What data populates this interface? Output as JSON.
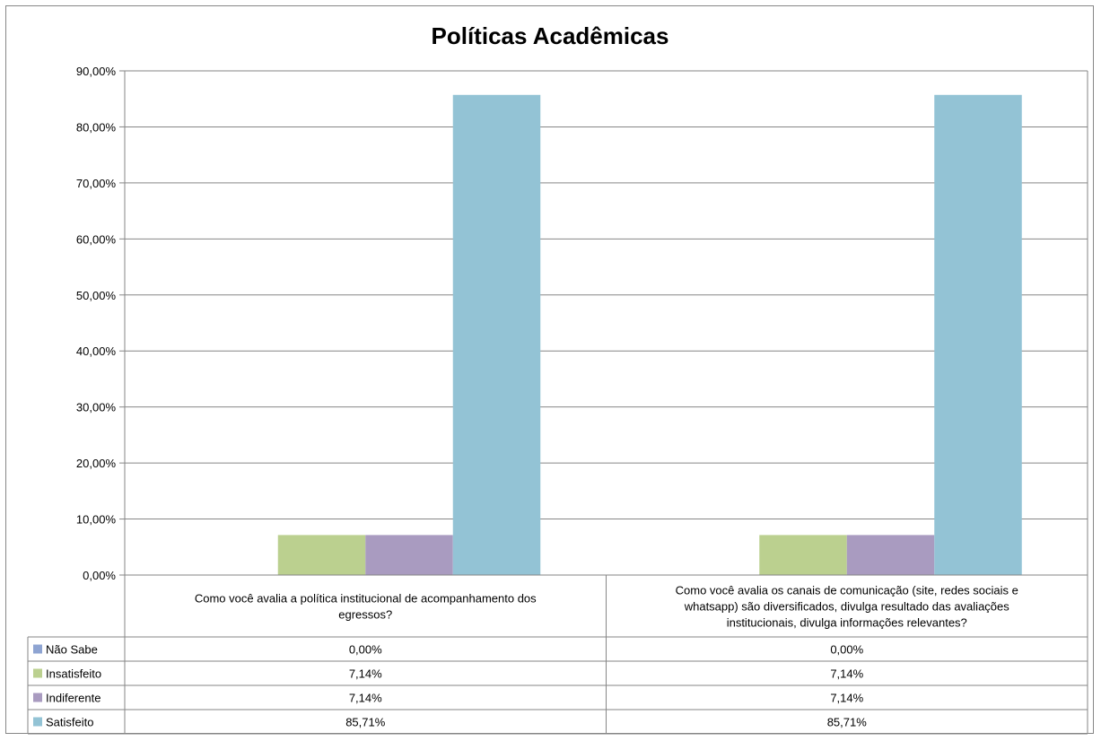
{
  "chart_data": {
    "type": "bar",
    "title": "Políticas Acadêmicas",
    "categories": [
      [
        "Como você avalia a política institucional de acompanhamento dos",
        "egressos?"
      ],
      [
        "Como você avalia os canais de comunicação (site, redes sociais e",
        "whatsapp) são diversificados, divulga resultado das avaliações",
        "institucionais, divulga informações relevantes?"
      ]
    ],
    "series": [
      {
        "name": "Não Sabe",
        "color": "#8EA4D2",
        "values": [
          0.0,
          0.0
        ],
        "labels": [
          "0,00%",
          "0,00%"
        ]
      },
      {
        "name": "Insatisfeito",
        "color": "#BBD08F",
        "values": [
          7.14,
          7.14
        ],
        "labels": [
          "7,14%",
          "7,14%"
        ]
      },
      {
        "name": "Indiferente",
        "color": "#A99BC0",
        "values": [
          7.14,
          7.14
        ],
        "labels": [
          "7,14%",
          "7,14%"
        ]
      },
      {
        "name": "Satisfeito",
        "color": "#93C3D5",
        "values": [
          85.71,
          85.71
        ],
        "labels": [
          "85,71%",
          "85,71%"
        ]
      }
    ],
    "ylim": [
      0,
      90
    ],
    "yticks": [
      "0,00%",
      "10,00%",
      "20,00%",
      "30,00%",
      "40,00%",
      "50,00%",
      "60,00%",
      "70,00%",
      "80,00%",
      "90,00%"
    ],
    "grid": true,
    "legend": "data-table"
  }
}
